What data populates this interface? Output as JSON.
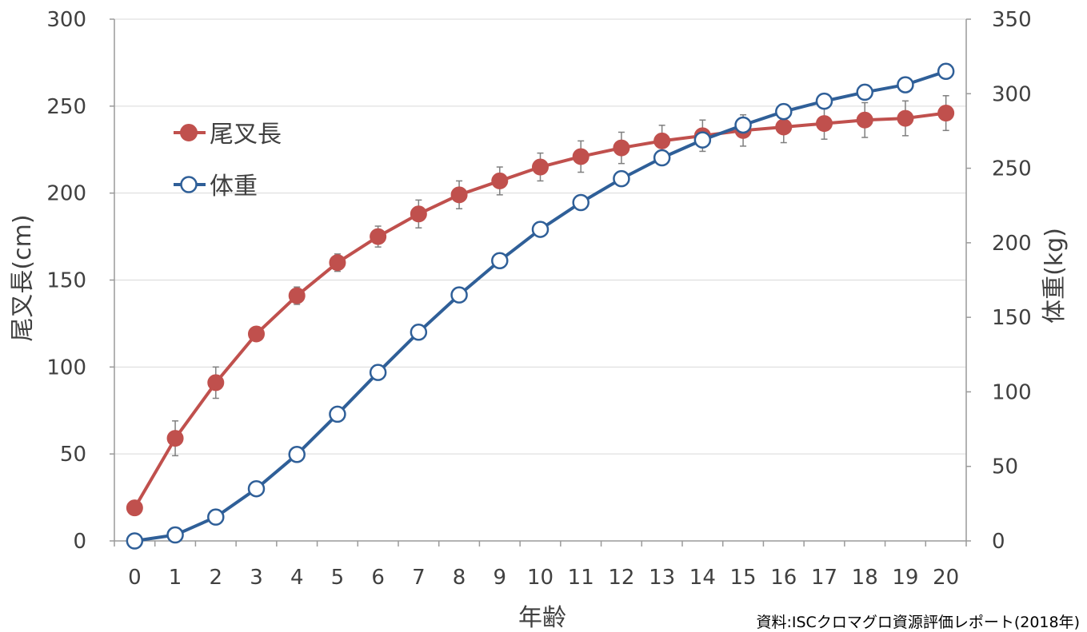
{
  "chart_data": {
    "type": "line",
    "x": [
      0,
      1,
      2,
      3,
      4,
      5,
      6,
      7,
      8,
      9,
      10,
      11,
      12,
      13,
      14,
      15,
      16,
      17,
      18,
      19,
      20
    ],
    "xlabel": "年齢",
    "ylabel": "尾叉長(cm)",
    "y2label": "体重(kg)",
    "ylim": [
      0,
      300
    ],
    "y2lim": [
      0,
      350
    ],
    "yticks": [
      0,
      50,
      100,
      150,
      200,
      250,
      300
    ],
    "y2ticks": [
      0,
      50,
      100,
      150,
      200,
      250,
      300,
      350
    ],
    "grid": true,
    "legend_position": "top-left",
    "series": [
      {
        "name": "尾叉長",
        "axis": "left",
        "color": "#C0504D",
        "marker": "filled-circle",
        "values": [
          19,
          59,
          91,
          119,
          141,
          160,
          175,
          188,
          199,
          207,
          215,
          221,
          226,
          230,
          233,
          236,
          238,
          240,
          242,
          243,
          246
        ],
        "error": [
          4,
          10,
          9,
          4,
          5,
          5,
          6,
          8,
          8,
          8,
          8,
          9,
          9,
          9,
          9,
          9,
          9,
          9,
          10,
          10,
          10
        ]
      },
      {
        "name": "体重",
        "axis": "right",
        "color": "#2F5F98",
        "marker": "open-circle",
        "values": [
          0,
          4,
          16,
          35,
          58,
          85,
          113,
          140,
          165,
          188,
          209,
          227,
          243,
          257,
          269,
          279,
          288,
          295,
          301,
          306,
          315
        ]
      }
    ]
  },
  "source_note": "資料:ISCクロマグロ資源評価レポート(2018年)"
}
